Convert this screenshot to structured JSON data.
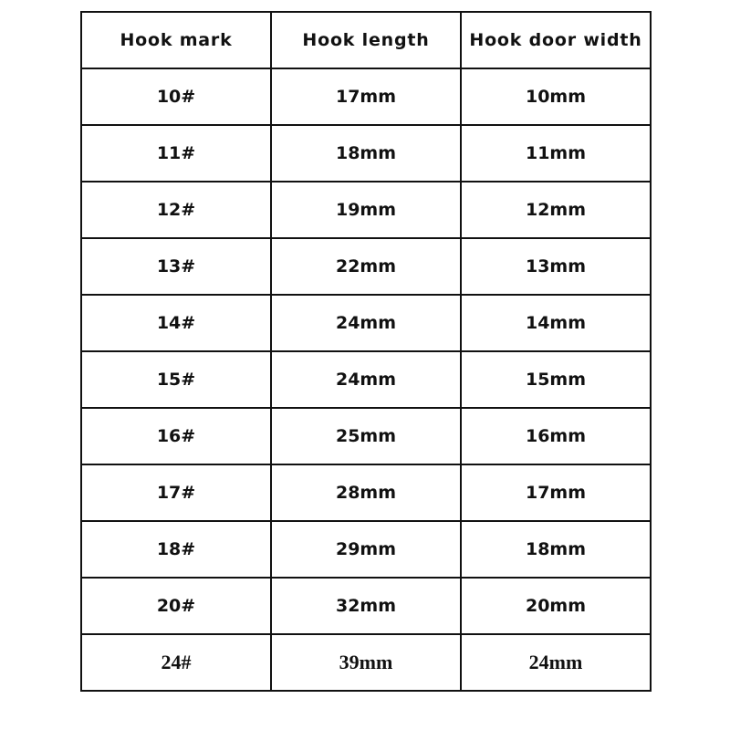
{
  "table": {
    "headers": [
      "Hook mark",
      "Hook length",
      "Hook door width"
    ],
    "rows": [
      [
        "10#",
        "17mm",
        "10mm"
      ],
      [
        "11#",
        "18mm",
        "11mm"
      ],
      [
        "12#",
        "19mm",
        "12mm"
      ],
      [
        "13#",
        "22mm",
        "13mm"
      ],
      [
        "14#",
        "24mm",
        "14mm"
      ],
      [
        "15#",
        "24mm",
        "15mm"
      ],
      [
        "16#",
        "25mm",
        "16mm"
      ],
      [
        "17#",
        "28mm",
        "17mm"
      ],
      [
        "18#",
        "29mm",
        "18mm"
      ],
      [
        "20#",
        "32mm",
        "20mm"
      ],
      [
        "24#",
        "39mm",
        "24mm"
      ]
    ]
  }
}
